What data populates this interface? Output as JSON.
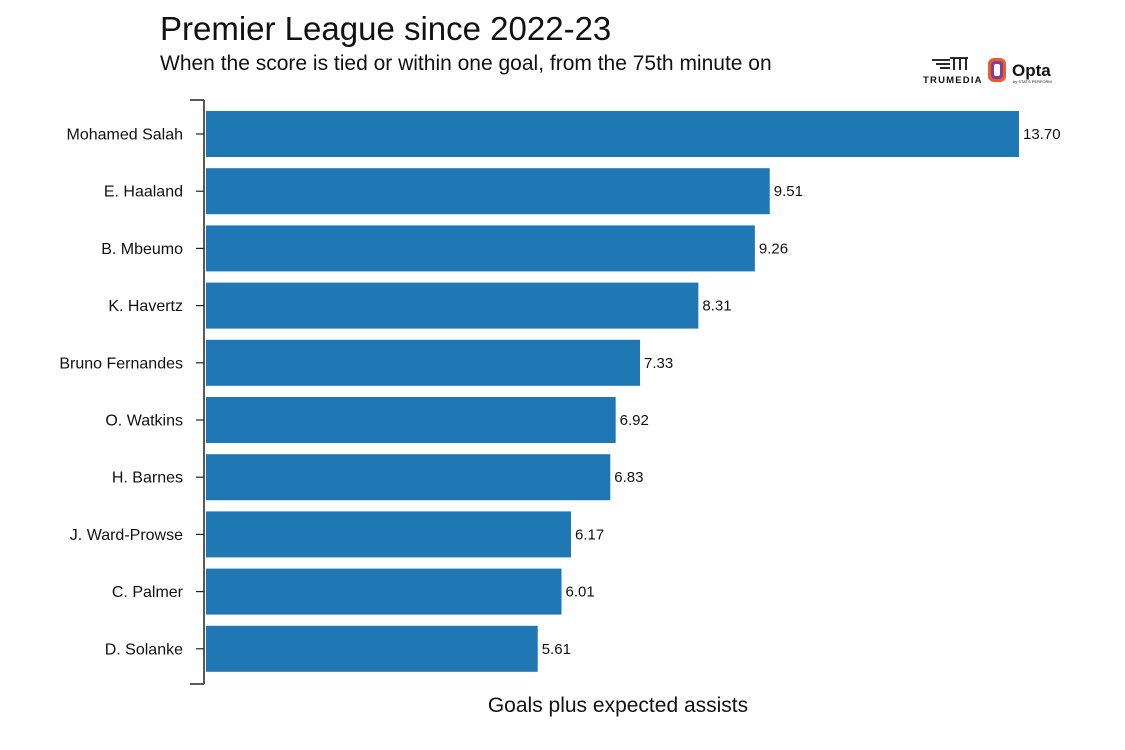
{
  "logos": {
    "trumedia": "TRUMEDIA",
    "opta": "Opta",
    "opta_sub": "by STATS PERFORM"
  },
  "chart_data": {
    "type": "bar",
    "orientation": "horizontal",
    "title": "Premier League since 2022-23",
    "subtitle": "When the score is tied or within one goal, from the 75th minute on",
    "xlabel": "Goals plus expected assists",
    "ylabel": "",
    "xlim": [
      0,
      13.7
    ],
    "grid": false,
    "categories": [
      "Mohamed Salah",
      "E. Haaland",
      "B. Mbeumo",
      "K. Havertz",
      "Bruno Fernandes",
      "O. Watkins",
      "H. Barnes",
      "J. Ward-Prowse",
      "C. Palmer",
      "D. Solanke"
    ],
    "values": [
      13.7,
      9.51,
      9.26,
      8.31,
      7.33,
      6.92,
      6.83,
      6.17,
      6.01,
      5.61
    ],
    "value_labels": [
      "13.70",
      "9.51",
      "9.26",
      "8.31",
      "7.33",
      "6.92",
      "6.83",
      "6.17",
      "6.01",
      "5.61"
    ],
    "bar_color": "#1f77b4"
  }
}
